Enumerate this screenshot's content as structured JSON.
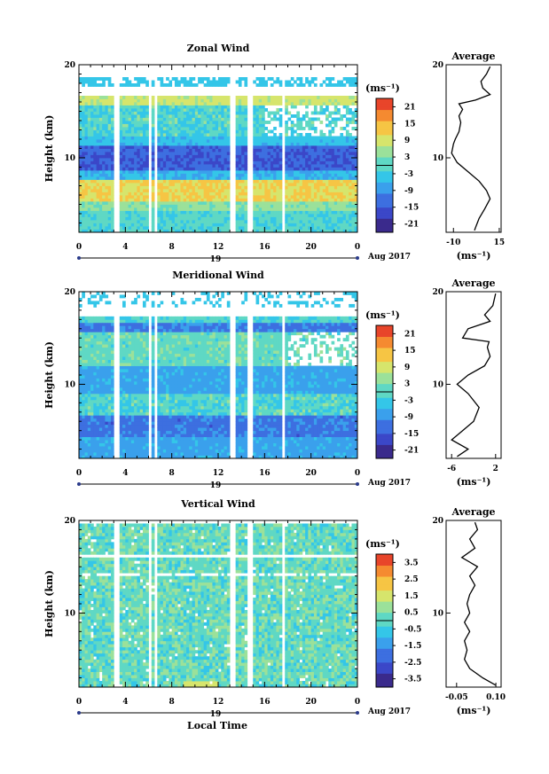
{
  "figure": {
    "bottom_xlabel": "Local Time",
    "date_label": "Aug 2017",
    "day_label": "19",
    "colormap": [
      "#3a2a8c",
      "#3b47c8",
      "#3d6fe0",
      "#3aa0ec",
      "#34c6e8",
      "#5fd8c4",
      "#9be19a",
      "#d6e56c",
      "#f6c544",
      "#f58a30",
      "#e8452a"
    ]
  },
  "chart_data": [
    {
      "type": "heatmap",
      "title": "Zonal Wind",
      "ylabel": "Height (km)",
      "xlim": [
        0,
        24
      ],
      "ylim": [
        2,
        20
      ],
      "xticks": [
        "0",
        "4",
        "8",
        "12",
        "16",
        "20",
        "0"
      ],
      "yticks": [
        "20",
        "10"
      ],
      "cbar_unit": "(ms⁻¹)",
      "cbar_ticks": [
        "21",
        "15",
        "9",
        "3",
        "-3",
        "-9",
        "-15",
        "-21"
      ],
      "cbar_range": [
        -24,
        24
      ],
      "data_gaps_hours": [
        [
          3.0,
          3.6
        ],
        [
          5.9,
          6.3
        ],
        [
          6.4,
          6.8
        ],
        [
          13.0,
          13.5
        ],
        [
          14.6,
          15.0
        ],
        [
          17.5,
          17.8
        ]
      ],
      "average": {
        "title": "Average",
        "xlabel": "(ms⁻¹)",
        "xlim": [
          -14,
          16
        ],
        "xticks": [
          "-10",
          "15"
        ],
        "yticks": [
          "20",
          "10"
        ],
        "profile": [
          [
            1.5,
            2.2
          ],
          [
            2,
            2.5
          ],
          [
            4,
            3.5
          ],
          [
            7,
            4.5
          ],
          [
            10,
            5.6
          ],
          [
            8,
            6.5
          ],
          [
            4,
            7.5
          ],
          [
            -2,
            8.5
          ],
          [
            -8,
            9.5
          ],
          [
            -11,
            10.5
          ],
          [
            -10,
            11.5
          ],
          [
            -9,
            12
          ],
          [
            -7,
            12.8
          ],
          [
            -6,
            13.8
          ],
          [
            -7,
            14.5
          ],
          [
            -5,
            15.2
          ],
          [
            -7,
            15.8
          ],
          [
            2,
            16.2
          ],
          [
            10,
            16.8
          ],
          [
            6,
            17.5
          ],
          [
            5,
            18.2
          ],
          [
            8,
            19
          ],
          [
            10,
            19.8
          ]
        ]
      }
    },
    {
      "type": "heatmap",
      "title": "Meridional Wind",
      "ylabel": "Height (km)",
      "xlim": [
        0,
        24
      ],
      "ylim": [
        2,
        20
      ],
      "xticks": [
        "0",
        "4",
        "8",
        "12",
        "16",
        "20",
        "0"
      ],
      "yticks": [
        "20",
        "10"
      ],
      "cbar_unit": "(ms⁻¹)",
      "cbar_ticks": [
        "21",
        "15",
        "9",
        "3",
        "-3",
        "-9",
        "-15",
        "-21"
      ],
      "cbar_range": [
        -24,
        24
      ],
      "data_gaps_hours": [
        [
          3.0,
          3.6
        ],
        [
          5.9,
          6.3
        ],
        [
          6.4,
          6.8
        ],
        [
          13.0,
          13.5
        ],
        [
          14.6,
          15.0
        ],
        [
          17.5,
          17.8
        ]
      ],
      "average": {
        "title": "Average",
        "xlabel": "(ms⁻¹)",
        "xlim": [
          -7,
          3
        ],
        "xticks": [
          "-6",
          "2"
        ],
        "yticks": [
          "20",
          "10"
        ],
        "profile": [
          [
            -5,
            2.2
          ],
          [
            -3,
            3
          ],
          [
            -6,
            4
          ],
          [
            -4,
            5
          ],
          [
            -2,
            6
          ],
          [
            -1,
            7.5
          ],
          [
            -3,
            9
          ],
          [
            -5,
            10
          ],
          [
            -3,
            11
          ],
          [
            0,
            12
          ],
          [
            1,
            13
          ],
          [
            0.5,
            14
          ],
          [
            0.8,
            14.6
          ],
          [
            -4,
            15
          ],
          [
            -3,
            16
          ],
          [
            1,
            16.8
          ],
          [
            0,
            17.5
          ],
          [
            1.5,
            18.5
          ],
          [
            2,
            19.8
          ]
        ]
      }
    },
    {
      "type": "heatmap",
      "title": "Vertical Wind",
      "ylabel": "Height (km)",
      "xlim": [
        0,
        24
      ],
      "ylim": [
        2,
        20
      ],
      "xticks": [
        "0",
        "4",
        "8",
        "12",
        "16",
        "20",
        "0"
      ],
      "yticks": [
        "20",
        "10"
      ],
      "cbar_unit": "(ms⁻¹)",
      "cbar_ticks": [
        "3.5",
        "2.5",
        "1.5",
        "0.5",
        "-0.5",
        "-1.5",
        "-2.5",
        "-3.5"
      ],
      "cbar_range": [
        -4,
        4
      ],
      "data_gaps_hours": [
        [
          3.0,
          3.6
        ],
        [
          5.9,
          6.3
        ],
        [
          6.4,
          6.8
        ],
        [
          13.0,
          13.5
        ],
        [
          14.6,
          15.0
        ],
        [
          17.5,
          17.8
        ]
      ],
      "average": {
        "title": "Average",
        "xlabel": "(ms⁻¹)",
        "xlim": [
          -0.09,
          0.12
        ],
        "xticks": [
          "-0.05",
          "0.10"
        ],
        "yticks": [
          "20",
          "10"
        ],
        "profile": [
          [
            0.1,
            2.2
          ],
          [
            0.05,
            3
          ],
          [
            0.0,
            4
          ],
          [
            -0.02,
            5
          ],
          [
            -0.01,
            6
          ],
          [
            -0.02,
            7
          ],
          [
            0.0,
            8
          ],
          [
            -0.02,
            9
          ],
          [
            0.0,
            10
          ],
          [
            -0.01,
            11
          ],
          [
            0.0,
            12
          ],
          [
            0.02,
            13
          ],
          [
            0.0,
            14
          ],
          [
            0.03,
            15
          ],
          [
            0.0,
            15.5
          ],
          [
            -0.03,
            16
          ],
          [
            0.02,
            17
          ],
          [
            0.0,
            18
          ],
          [
            0.03,
            19
          ],
          [
            0.02,
            19.8
          ]
        ]
      }
    }
  ]
}
